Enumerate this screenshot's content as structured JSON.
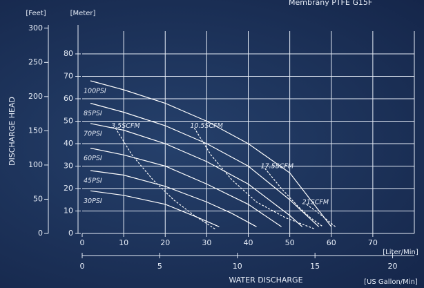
{
  "chart_data": {
    "type": "line",
    "title": "Membrány PTFE G15F",
    "y_label": "DISCHARGE HEAD",
    "x_label": "WATER DISCHARGE",
    "y_unit": "[Meter]",
    "y2_unit": "[Feet]",
    "x_unit": "[Liter/Min]",
    "x2_unit": "[US Gallon/Min]",
    "xlim": [
      0,
      80
    ],
    "xticks": [
      0,
      10,
      20,
      30,
      40,
      50,
      60,
      70
    ],
    "x2lim": [
      0,
      21.4
    ],
    "x2ticks": [
      0,
      5,
      10,
      15,
      20
    ],
    "ylim": [
      0,
      92
    ],
    "yticks": [
      0,
      10,
      20,
      30,
      40,
      50,
      60,
      70,
      80
    ],
    "y2lim": [
      0,
      301.8
    ],
    "y2ticks": [
      0,
      50,
      100,
      150,
      200,
      250,
      300
    ],
    "grid": true,
    "series": [
      {
        "name": "100PSI",
        "color": "#ffffff",
        "style": "solid",
        "x": [
          2,
          10,
          20,
          30,
          40,
          50,
          60
        ],
        "values": [
          68,
          64,
          58,
          50,
          40,
          27,
          3
        ]
      },
      {
        "name": "85PSI",
        "color": "#ffffff",
        "style": "solid",
        "x": [
          2,
          10,
          20,
          30,
          40,
          50,
          57
        ],
        "values": [
          58,
          54,
          48,
          40,
          30,
          15,
          3
        ]
      },
      {
        "name": "70PSI",
        "color": "#ffffff",
        "style": "solid",
        "x": [
          2,
          10,
          20,
          30,
          40,
          50,
          53
        ],
        "values": [
          49,
          46,
          40,
          32,
          22,
          8,
          3
        ]
      },
      {
        "name": "60PSI",
        "color": "#ffffff",
        "style": "solid",
        "x": [
          2,
          10,
          20,
          30,
          40,
          48
        ],
        "values": [
          38,
          35,
          30,
          22,
          13,
          3
        ]
      },
      {
        "name": "45PSI",
        "color": "#ffffff",
        "style": "solid",
        "x": [
          2,
          10,
          20,
          30,
          36,
          42
        ],
        "values": [
          28,
          26,
          21,
          14,
          9,
          3
        ]
      },
      {
        "name": "30PSI",
        "color": "#ffffff",
        "style": "solid",
        "x": [
          2,
          10,
          20,
          28,
          33
        ],
        "values": [
          19,
          17,
          13,
          7,
          3
        ]
      },
      {
        "name": "3.5SCFM",
        "color": "#ffffff",
        "style": "dashed",
        "x": [
          8,
          12,
          17,
          22,
          27,
          32
        ],
        "values": [
          47,
          35,
          24,
          15,
          8,
          2
        ]
      },
      {
        "name": "10.5SCFM",
        "color": "#ffffff",
        "style": "dashed",
        "x": [
          27,
          31,
          36,
          42,
          49,
          56
        ],
        "values": [
          47,
          35,
          24,
          14,
          7,
          2
        ]
      },
      {
        "name": "17.5SCFM",
        "color": "#ffffff",
        "style": "dashed",
        "x": [
          44,
          48,
          52,
          55,
          58
        ],
        "values": [
          29,
          20,
          12,
          7,
          3
        ]
      },
      {
        "name": "21SCFM",
        "color": "#ffffff",
        "style": "dashed",
        "x": [
          54,
          57,
          61
        ],
        "values": [
          13,
          9,
          3
        ]
      }
    ]
  }
}
